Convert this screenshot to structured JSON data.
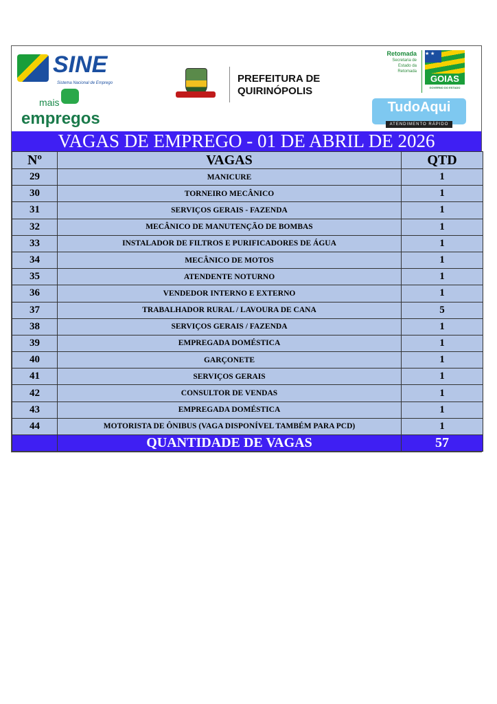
{
  "logos": {
    "sine": {
      "name": "SINE",
      "subtitle": "Sistema Nacional de Emprego"
    },
    "mais_empregos": {
      "line1": "mais",
      "line2": "empregos"
    },
    "prefeitura": {
      "line1": "PREFEITURA DE",
      "line2": "QUIRINÓPOLIS"
    },
    "retomada": {
      "name": "Retomada",
      "line1": "Secretaria de",
      "line2": "Estado da",
      "line3": "Retomada"
    },
    "goias": {
      "name": "GOIAS",
      "sub": "GOVERNO DO ESTADO"
    },
    "tudo_aqui": {
      "name": "TudoAqui",
      "sub": "ATENDIMENTO RÁPIDO"
    }
  },
  "title": "VAGAS DE EMPREGO - 01 DE ABRIL DE 2026",
  "table": {
    "headers": [
      "Nº",
      "VAGAS",
      "QTD"
    ],
    "rows": [
      {
        "n": "29",
        "vaga": "MANICURE",
        "qtd": "1"
      },
      {
        "n": "30",
        "vaga": "TORNEIRO MECÂNICO",
        "qtd": "1"
      },
      {
        "n": "31",
        "vaga": "SERVIÇOS GERAIS - FAZENDA",
        "qtd": "1"
      },
      {
        "n": "32",
        "vaga": "MECÂNICO DE MANUTENÇÃO DE BOMBAS",
        "qtd": "1"
      },
      {
        "n": "33",
        "vaga": "INSTALADOR DE FILTROS E PURIFICADORES DE ÁGUA",
        "qtd": "1"
      },
      {
        "n": "34",
        "vaga": "MECÂNICO DE MOTOS",
        "qtd": "1"
      },
      {
        "n": "35",
        "vaga": "ATENDENTE NOTURNO",
        "qtd": "1"
      },
      {
        "n": "36",
        "vaga": "VENDEDOR INTERNO E EXTERNO",
        "qtd": "1"
      },
      {
        "n": "37",
        "vaga": "TRABALHADOR RURAL / LAVOURA DE CANA",
        "qtd": "5"
      },
      {
        "n": "38",
        "vaga": "SERVIÇOS GERAIS / FAZENDA",
        "qtd": "1"
      },
      {
        "n": "39",
        "vaga": "EMPREGADA DOMÉSTICA",
        "qtd": "1"
      },
      {
        "n": "40",
        "vaga": "GARÇONETE",
        "qtd": "1"
      },
      {
        "n": "41",
        "vaga": "SERVIÇOS GERAIS",
        "qtd": "1"
      },
      {
        "n": "42",
        "vaga": "CONSULTOR DE VENDAS",
        "qtd": "1"
      },
      {
        "n": "43",
        "vaga": "EMPREGADA DOMÉSTICA",
        "qtd": "1"
      },
      {
        "n": "44",
        "vaga": "MOTORISTA DE ÔNIBUS (VAGA DISPONÍVEL TAMBÉM PARA PCD)",
        "qtd": "1"
      }
    ],
    "total_label": "QUANTIDADE DE VAGAS",
    "total_value": "57"
  },
  "colors": {
    "title_bar": "#3f1ff3",
    "row_bg": "#b4c6e7"
  }
}
